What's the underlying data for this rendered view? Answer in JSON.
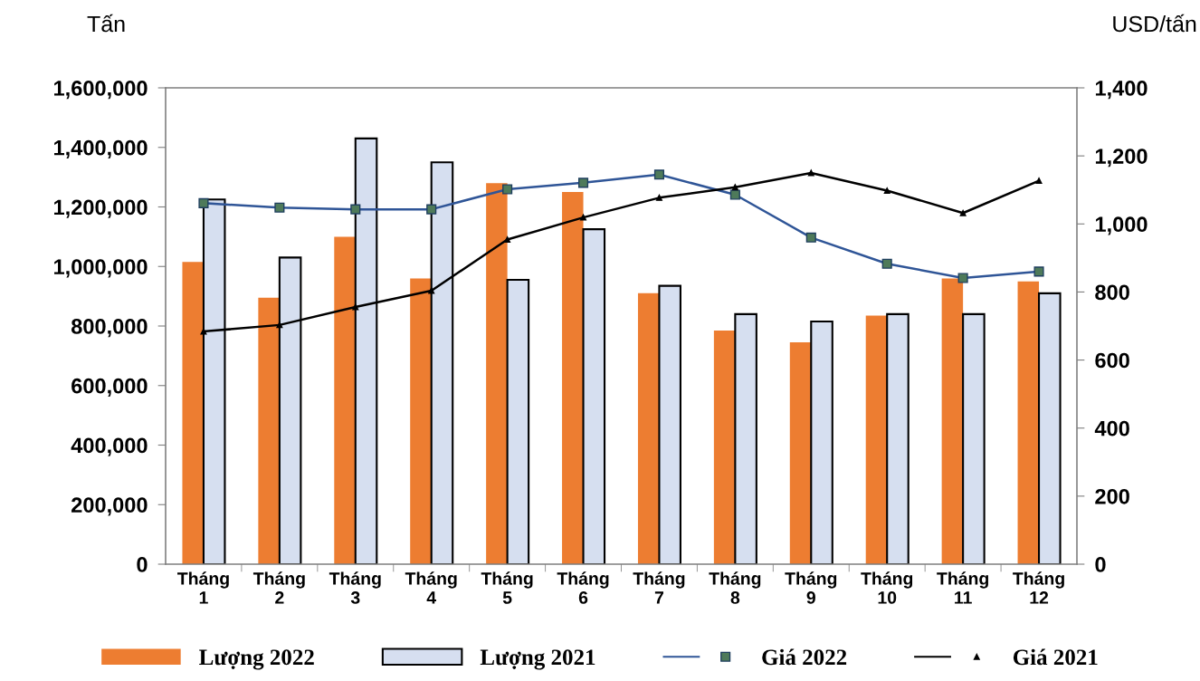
{
  "chart_data": {
    "type": "bar",
    "ylabel": "Tấn",
    "y2label": "USD/tấn",
    "categories": [
      "Tháng\n1",
      "Tháng\n2",
      "Tháng\n3",
      "Tháng\n4",
      "Tháng\n5",
      "Tháng\n6",
      "Tháng\n7",
      "Tháng\n8",
      "Tháng\n9",
      "Tháng\n10",
      "Tháng\n11",
      "Tháng\n12"
    ],
    "series": [
      {
        "name": "Lượng 2022",
        "color": "#ed7d31",
        "values": [
          1015000,
          895000,
          1100000,
          960000,
          1280000,
          1250000,
          910000,
          785000,
          745000,
          835000,
          960000,
          950000
        ]
      },
      {
        "name": "Lượng 2021",
        "color": "#d6dff0",
        "values": [
          1225000,
          1030000,
          1430000,
          1350000,
          955000,
          1125000,
          935000,
          840000,
          815000,
          840000,
          840000,
          910000
        ]
      },
      {
        "name": "Giá 2022",
        "type": "line",
        "axis": "y2",
        "color": "#2f5597",
        "marker": "square",
        "values": [
          1061,
          1048,
          1043,
          1043,
          1102,
          1121,
          1145,
          1086,
          960,
          883,
          841,
          860
        ]
      },
      {
        "name": "Giá 2021",
        "type": "line",
        "axis": "y2",
        "color": "#000000",
        "marker": "triangle",
        "values": [
          684,
          703,
          756,
          804,
          954,
          1019,
          1077,
          1108,
          1150,
          1098,
          1032,
          1127
        ]
      }
    ],
    "ylim": [
      0,
      1600000
    ],
    "yticks": [
      {
        "value": 0,
        "label": "0"
      },
      {
        "value": 200000,
        "label": "200,000"
      },
      {
        "value": 400000,
        "label": "400,000"
      },
      {
        "value": 600000,
        "label": "600,000"
      },
      {
        "value": 800000,
        "label": "800,000"
      },
      {
        "value": 1000000,
        "label": "1,000,000"
      },
      {
        "value": 1200000,
        "label": "1,200,000"
      },
      {
        "value": 1400000,
        "label": "1,400,000"
      },
      {
        "value": 1600000,
        "label": "1,600,000"
      }
    ],
    "y2lim": [
      0,
      1400
    ],
    "y2ticks": [
      {
        "value": 0,
        "label": "0"
      },
      {
        "value": 200,
        "label": "200"
      },
      {
        "value": 400,
        "label": "400"
      },
      {
        "value": 600,
        "label": "600"
      },
      {
        "value": 800,
        "label": "800"
      },
      {
        "value": 1000,
        "label": "1,000"
      },
      {
        "value": 1200,
        "label": "1,200"
      },
      {
        "value": 1400,
        "label": "1,400"
      }
    ],
    "grid": false,
    "legend": "bottom",
    "line_style": "solid"
  }
}
